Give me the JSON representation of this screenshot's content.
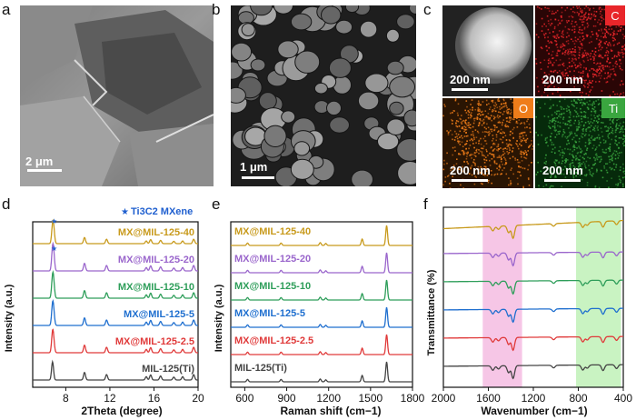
{
  "panels": {
    "a": {
      "label": "a",
      "scale": "2 μm"
    },
    "b": {
      "label": "b",
      "scale": "1 μm"
    },
    "c": {
      "label": "c",
      "scale": "200 nm",
      "elements": [
        {
          "name": "C",
          "color": "#e8262a"
        },
        {
          "name": "O",
          "color": "#ef7d1a"
        },
        {
          "name": "Ti",
          "color": "#3aa63f"
        }
      ]
    },
    "d": {
      "label": "d"
    },
    "e": {
      "label": "e"
    },
    "f": {
      "label": "f"
    }
  },
  "series_names": [
    "MIL-125(Ti)",
    "MX@MIL-125-2.5",
    "MX@MIL-125-5",
    "MX@MIL-125-10",
    "MX@MIL-125-20",
    "MX@MIL-125-40"
  ],
  "series_colors": [
    "#444444",
    "#e03a3a",
    "#1f6fcf",
    "#2e9e5a",
    "#9a66cc",
    "#c89a1c"
  ],
  "chart_data": [
    {
      "panel": "d",
      "type": "line",
      "title": "",
      "xlabel": "2Theta (degree)",
      "ylabel": "Intensity (a.u.)",
      "xlim": [
        5,
        20
      ],
      "xticks": [
        8,
        12,
        16,
        20
      ],
      "legend_note": "Ti3C2 MXene",
      "annotation_marker": "★",
      "peaks": [
        {
          "pos": 6.8,
          "h": 1.0
        },
        {
          "pos": 9.7,
          "h": 0.42
        },
        {
          "pos": 11.7,
          "h": 0.3
        },
        {
          "pos": 15.3,
          "h": 0.18
        },
        {
          "pos": 15.7,
          "h": 0.28
        },
        {
          "pos": 16.6,
          "h": 0.22
        },
        {
          "pos": 17.8,
          "h": 0.16
        },
        {
          "pos": 18.6,
          "h": 0.18
        },
        {
          "pos": 19.6,
          "h": 0.3
        }
      ],
      "mxene_peak": 6.9
    },
    {
      "panel": "e",
      "type": "line",
      "title": "",
      "xlabel": "Raman shift (cm−1)",
      "ylabel": "Intensity (a.u.)",
      "xlim": [
        500,
        1800
      ],
      "xticks": [
        600,
        900,
        1200,
        1500,
        1800
      ],
      "peaks": [
        {
          "pos": 620,
          "h": 0.12
        },
        {
          "pos": 860,
          "h": 0.12
        },
        {
          "pos": 1140,
          "h": 0.14
        },
        {
          "pos": 1180,
          "h": 0.1
        },
        {
          "pos": 1440,
          "h": 0.32
        },
        {
          "pos": 1615,
          "h": 1.0
        }
      ]
    },
    {
      "panel": "f",
      "type": "line",
      "title": "",
      "xlabel": "Wavenumber (cm−1)",
      "ylabel": "Transmittance (%)",
      "xlim": [
        2000,
        400
      ],
      "xticks": [
        2000,
        1600,
        1200,
        800,
        400
      ],
      "highlight_bands": [
        {
          "from": 1650,
          "to": 1300,
          "color": "#f6c6e6"
        },
        {
          "from": 820,
          "to": 420,
          "color": "#c9f3c2"
        }
      ],
      "dips": [
        {
          "pos": 1560,
          "d": 0.35
        },
        {
          "pos": 1510,
          "d": 0.25
        },
        {
          "pos": 1420,
          "d": 0.55
        },
        {
          "pos": 1380,
          "d": 1.0
        },
        {
          "pos": 1020,
          "d": 0.2
        },
        {
          "pos": 760,
          "d": 0.4
        },
        {
          "pos": 720,
          "d": 0.25
        },
        {
          "pos": 580,
          "d": 0.45
        },
        {
          "pos": 460,
          "d": 0.3
        }
      ]
    }
  ]
}
